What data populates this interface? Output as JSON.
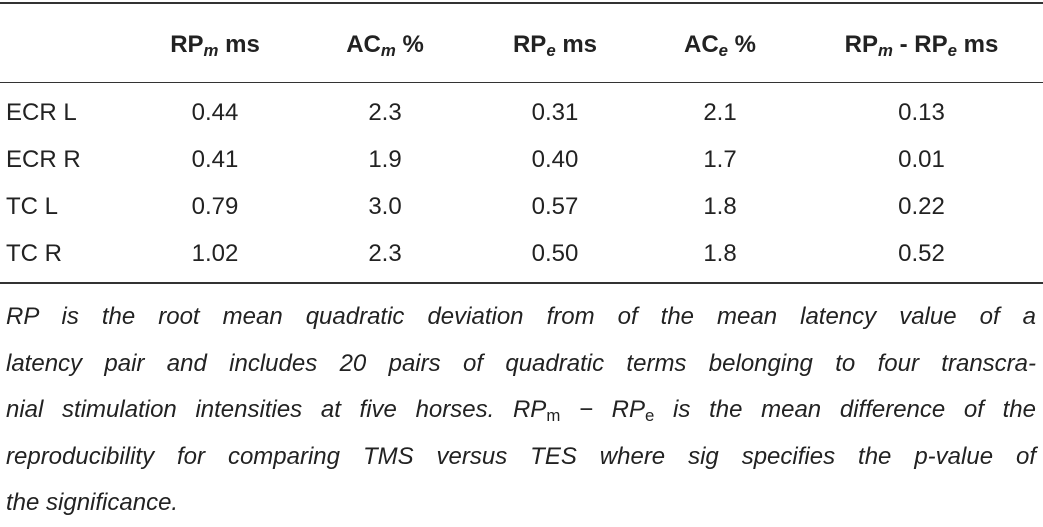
{
  "table": {
    "header": [
      [
        {
          "text": "RP"
        },
        {
          "sub": "m"
        },
        {
          "text": " ms"
        }
      ],
      [
        {
          "text": "AC"
        },
        {
          "sub": "m"
        },
        {
          "text": " %"
        }
      ],
      [
        {
          "text": "RP"
        },
        {
          "sub": "e"
        },
        {
          "text": " ms"
        }
      ],
      [
        {
          "text": "AC"
        },
        {
          "sub": "e"
        },
        {
          "text": " %"
        }
      ],
      [
        {
          "text": "RP"
        },
        {
          "sub": "m"
        },
        {
          "text": " - RP"
        },
        {
          "sub": "e"
        },
        {
          "text": " ms"
        }
      ]
    ],
    "rows": [
      [
        "ECR L",
        "0.44",
        "2.3",
        "0.31",
        "2.1",
        "0.13"
      ],
      [
        "ECR R",
        "0.41",
        "1.9",
        "0.40",
        "1.7",
        "0.01"
      ],
      [
        "TC L",
        "0.79",
        "3.0",
        "0.57",
        "1.8",
        "0.22"
      ],
      [
        "TC R",
        "1.02",
        "2.3",
        "0.50",
        "1.8",
        "0.52"
      ]
    ]
  },
  "footnote": {
    "lines": [
      [
        {
          "text": "RP is the root mean quadratic deviation from of the mean latency value of a"
        }
      ],
      [
        {
          "text": "latency pair and includes 20 pairs of quadratic terms belonging to four transcra-"
        }
      ],
      [
        {
          "text": "nial stimulation intensities at five horses. RP"
        },
        {
          "sub": "m"
        },
        {
          "text": " − RP"
        },
        {
          "sub": "e"
        },
        {
          "text": " is the mean difference of the"
        }
      ],
      [
        {
          "text": "reproducibility for comparing TMS versus TES where sig specifies the p-value of"
        }
      ],
      [
        {
          "text": "the significance."
        }
      ]
    ]
  }
}
